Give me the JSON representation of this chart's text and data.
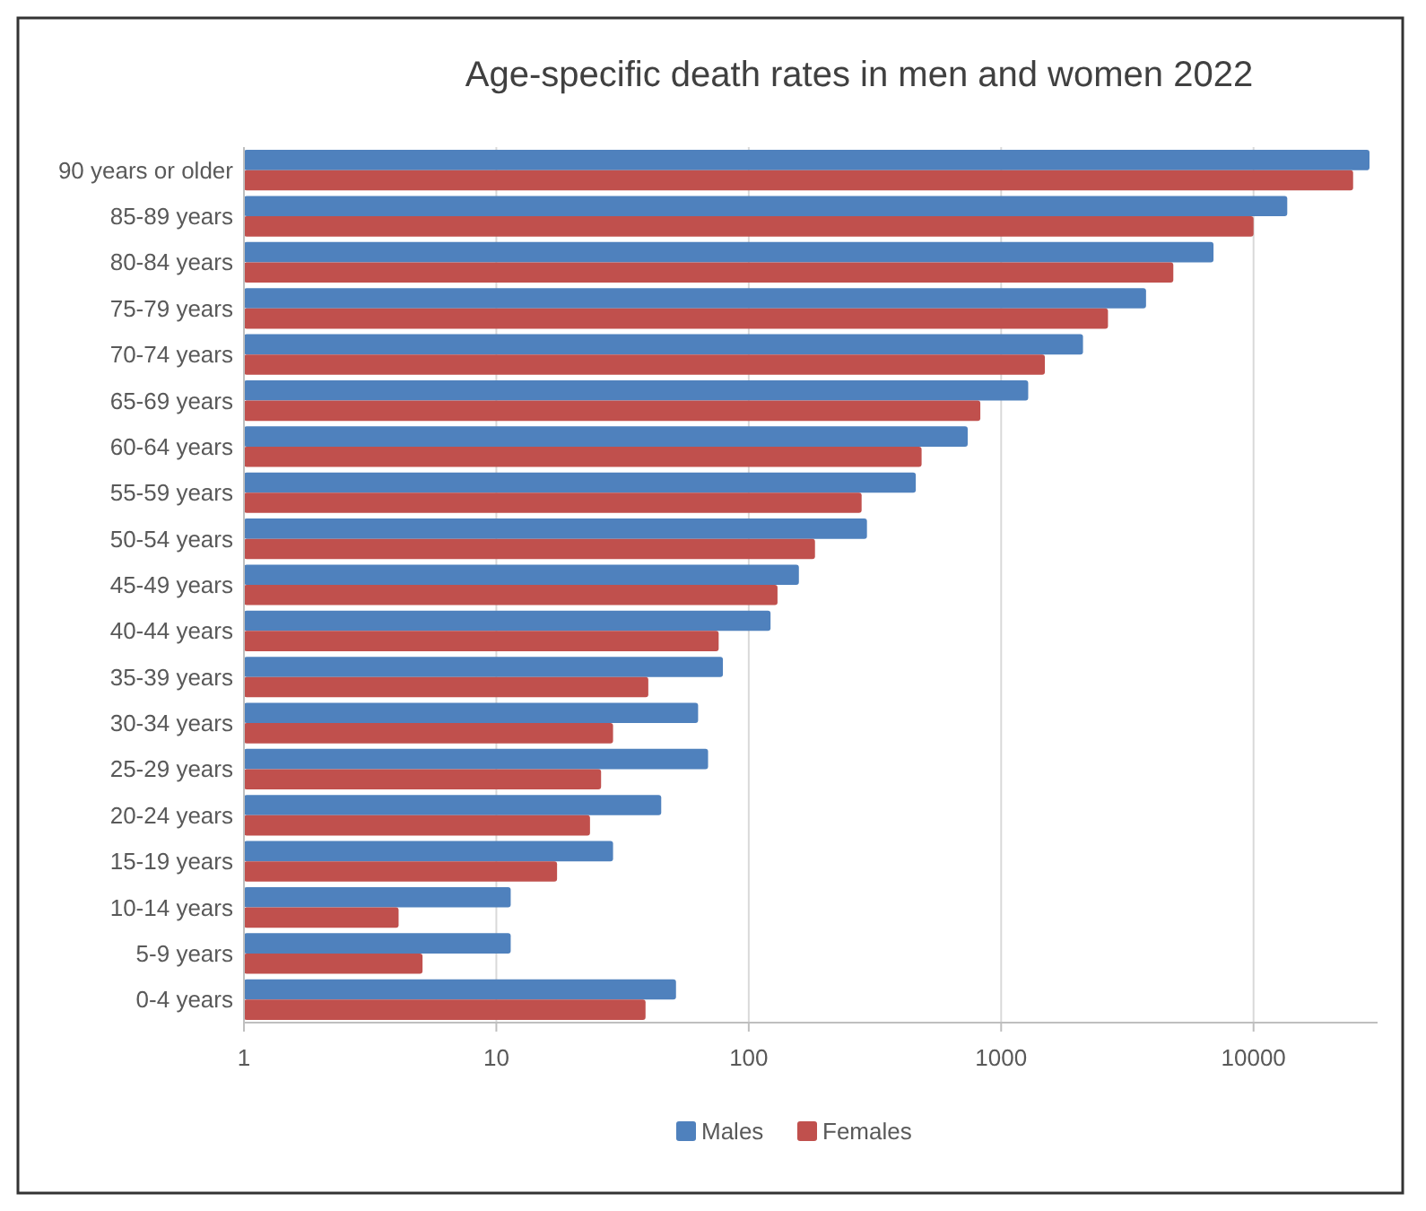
{
  "chart_data": {
    "type": "bar",
    "orientation": "horizontal",
    "title": "Age-specific death rates in men and women 2022",
    "categories": [
      "90 years or older",
      "85-89 years",
      "80-84 years",
      "75-79 years",
      "70-74 years",
      "65-69 years",
      "60-64 years",
      "55-59 years",
      "50-54 years",
      "45-49 years",
      "40-44 years",
      "35-39 years",
      "30-34 years",
      "25-29 years",
      "20-24 years",
      "15-19 years",
      "10-14 years",
      "5-9 years",
      "0-4 years"
    ],
    "series": [
      {
        "name": "Males",
        "color": "#4f81bd",
        "values": [
          28800,
          13600,
          6940,
          3750,
          2110,
          1280,
          737,
          459,
          294,
          158,
          122,
          79,
          63,
          69,
          45,
          29,
          11.4,
          11.4,
          51.5
        ]
      },
      {
        "name": "Females",
        "color": "#c0504d",
        "values": [
          24800,
          10000,
          4810,
          2650,
          1490,
          827,
          484,
          280,
          183,
          130,
          76,
          40,
          29,
          26,
          23.5,
          17.4,
          4.1,
          5.1,
          39
        ]
      }
    ],
    "log": "x",
    "xlim": [
      1,
      31000
    ],
    "xticks": [
      1,
      10,
      100,
      1000,
      10000
    ],
    "grid": "x",
    "legend": "bottom"
  }
}
